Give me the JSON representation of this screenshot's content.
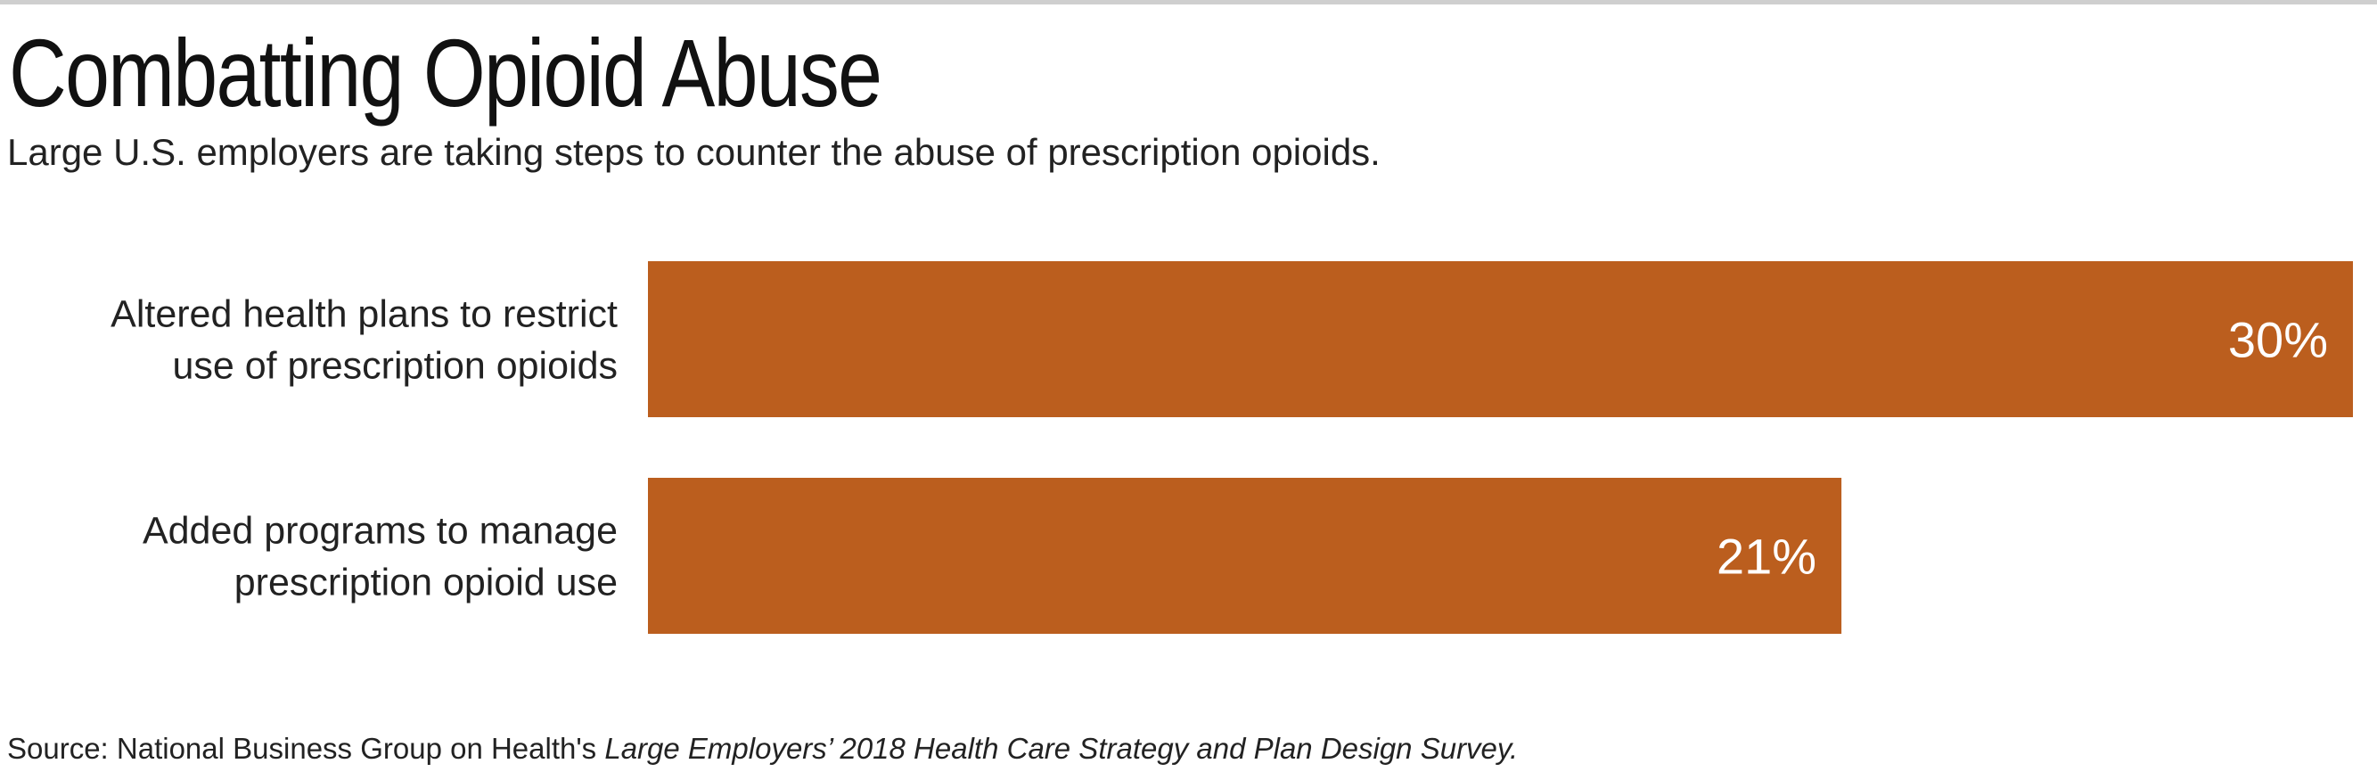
{
  "chart_data": {
    "type": "bar",
    "orientation": "horizontal",
    "title": "Combatting Opioid Abuse",
    "subtitle": "Large U.S. employers are taking steps to counter the abuse of prescription opioids.",
    "categories": [
      [
        "Altered health plans to restrict",
        "use of prescription opioids"
      ],
      [
        "Added programs to manage",
        "prescription opioid use"
      ]
    ],
    "values": [
      30,
      21
    ],
    "value_labels": [
      "30%",
      "21%"
    ],
    "unit": "%",
    "xlim": [
      0,
      30
    ],
    "grid": false,
    "legend": "none",
    "bar_color": "#bb5e1e",
    "value_label_color": "#ffffff"
  },
  "source": {
    "prefix": "Source: National Business Group on Health's ",
    "survey": "Large Employers’ 2018 Health Care Strategy and Plan Design Survey."
  }
}
